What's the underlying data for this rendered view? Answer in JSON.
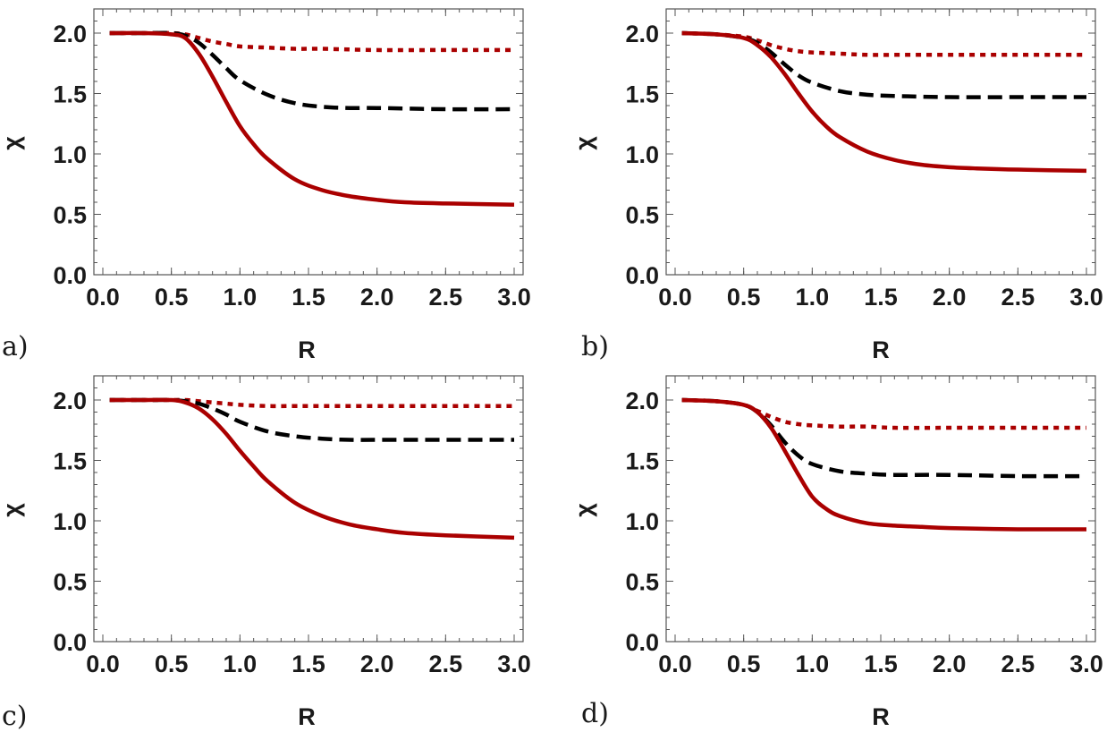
{
  "figure": {
    "colors": {
      "solid": "#aa0000",
      "dotted": "#aa0000",
      "dashed": "#000000",
      "text": "#1a1a1a"
    }
  },
  "chart_data": [
    {
      "type": "line",
      "panel_label": "a)",
      "xlabel": "R",
      "ylabel": "χ",
      "xlim": [
        0.0,
        3.0
      ],
      "ylim": [
        0.0,
        2.2
      ],
      "xticks": [
        "0.0",
        "0.5",
        "1.0",
        "1.5",
        "2.0",
        "2.5",
        "3.0"
      ],
      "yticks": [
        "0.0",
        "0.5",
        "1.0",
        "1.5",
        "2.0"
      ],
      "series": [
        {
          "name": "dotted",
          "style": "dotted",
          "x": [
            0.05,
            0.3,
            0.5,
            0.6,
            0.7,
            0.8,
            0.9,
            1.0,
            1.2,
            1.4,
            1.6,
            2.0,
            2.5,
            3.0
          ],
          "y": [
            2.0,
            2.0,
            2.0,
            1.99,
            1.96,
            1.93,
            1.91,
            1.89,
            1.88,
            1.87,
            1.87,
            1.86,
            1.86,
            1.86
          ]
        },
        {
          "name": "dashed",
          "style": "dashed",
          "x": [
            0.05,
            0.3,
            0.5,
            0.6,
            0.7,
            0.8,
            0.9,
            1.0,
            1.2,
            1.4,
            1.6,
            1.8,
            2.0,
            2.5,
            3.0
          ],
          "y": [
            2.0,
            2.0,
            2.0,
            1.98,
            1.92,
            1.82,
            1.71,
            1.61,
            1.49,
            1.42,
            1.39,
            1.38,
            1.38,
            1.37,
            1.37
          ]
        },
        {
          "name": "solid",
          "style": "solid",
          "x": [
            0.05,
            0.3,
            0.5,
            0.6,
            0.7,
            0.8,
            0.9,
            1.0,
            1.1,
            1.2,
            1.4,
            1.6,
            1.8,
            2.0,
            2.2,
            2.5,
            3.0
          ],
          "y": [
            2.0,
            2.0,
            1.99,
            1.96,
            1.83,
            1.64,
            1.43,
            1.23,
            1.08,
            0.96,
            0.79,
            0.7,
            0.65,
            0.62,
            0.6,
            0.59,
            0.58
          ]
        }
      ]
    },
    {
      "type": "line",
      "panel_label": "b)",
      "xlabel": "R",
      "ylabel": "χ",
      "xlim": [
        0.0,
        3.0
      ],
      "ylim": [
        0.0,
        2.2
      ],
      "xticks": [
        "0.0",
        "0.5",
        "1.0",
        "1.5",
        "2.0",
        "2.5",
        "3.0"
      ],
      "yticks": [
        "0.0",
        "0.5",
        "1.0",
        "1.5",
        "2.0"
      ],
      "series": [
        {
          "name": "dotted",
          "style": "dotted",
          "x": [
            0.05,
            0.3,
            0.5,
            0.6,
            0.7,
            0.8,
            0.9,
            1.0,
            1.2,
            1.4,
            1.6,
            2.0,
            2.5,
            3.0
          ],
          "y": [
            2.0,
            1.99,
            1.97,
            1.94,
            1.9,
            1.87,
            1.85,
            1.84,
            1.83,
            1.82,
            1.82,
            1.82,
            1.82,
            1.82
          ]
        },
        {
          "name": "dashed",
          "style": "dashed",
          "x": [
            0.05,
            0.3,
            0.5,
            0.6,
            0.7,
            0.8,
            0.9,
            1.0,
            1.2,
            1.4,
            1.6,
            2.0,
            2.5,
            3.0
          ],
          "y": [
            2.0,
            1.99,
            1.96,
            1.92,
            1.84,
            1.74,
            1.65,
            1.59,
            1.52,
            1.49,
            1.48,
            1.47,
            1.47,
            1.47
          ]
        },
        {
          "name": "solid",
          "style": "solid",
          "x": [
            0.05,
            0.3,
            0.5,
            0.6,
            0.7,
            0.8,
            0.9,
            1.0,
            1.1,
            1.2,
            1.4,
            1.6,
            1.8,
            2.0,
            2.2,
            2.5,
            3.0
          ],
          "y": [
            2.0,
            1.99,
            1.96,
            1.9,
            1.8,
            1.66,
            1.5,
            1.35,
            1.23,
            1.14,
            1.02,
            0.95,
            0.91,
            0.89,
            0.88,
            0.87,
            0.86
          ]
        }
      ]
    },
    {
      "type": "line",
      "panel_label": "c)",
      "xlabel": "R",
      "ylabel": "χ",
      "xlim": [
        0.0,
        3.0
      ],
      "ylim": [
        0.0,
        2.2
      ],
      "xticks": [
        "0.0",
        "0.5",
        "1.0",
        "1.5",
        "2.0",
        "2.5",
        "3.0"
      ],
      "yticks": [
        "0.0",
        "0.5",
        "1.0",
        "1.5",
        "2.0"
      ],
      "series": [
        {
          "name": "dotted",
          "style": "dotted",
          "x": [
            0.05,
            0.3,
            0.5,
            0.6,
            0.7,
            0.8,
            0.9,
            1.0,
            1.2,
            1.4,
            1.6,
            2.0,
            2.5,
            3.0
          ],
          "y": [
            2.0,
            2.0,
            2.0,
            2.0,
            1.99,
            1.98,
            1.97,
            1.96,
            1.95,
            1.95,
            1.95,
            1.95,
            1.95,
            1.95
          ]
        },
        {
          "name": "dashed",
          "style": "dashed",
          "x": [
            0.05,
            0.3,
            0.5,
            0.6,
            0.7,
            0.8,
            0.9,
            1.0,
            1.2,
            1.4,
            1.6,
            1.8,
            2.0,
            2.5,
            3.0
          ],
          "y": [
            2.0,
            2.0,
            2.0,
            1.99,
            1.97,
            1.93,
            1.88,
            1.82,
            1.74,
            1.7,
            1.68,
            1.67,
            1.67,
            1.67,
            1.67
          ]
        },
        {
          "name": "solid",
          "style": "solid",
          "x": [
            0.05,
            0.3,
            0.5,
            0.6,
            0.7,
            0.8,
            0.9,
            1.0,
            1.1,
            1.2,
            1.4,
            1.6,
            1.8,
            2.0,
            2.2,
            2.5,
            3.0
          ],
          "y": [
            2.0,
            2.0,
            2.0,
            1.98,
            1.93,
            1.84,
            1.72,
            1.58,
            1.45,
            1.33,
            1.15,
            1.04,
            0.97,
            0.93,
            0.9,
            0.88,
            0.86
          ]
        }
      ]
    },
    {
      "type": "line",
      "panel_label": "d)",
      "xlabel": "R",
      "ylabel": "χ",
      "xlim": [
        0.0,
        3.0
      ],
      "ylim": [
        0.0,
        2.2
      ],
      "xticks": [
        "0.0",
        "0.5",
        "1.0",
        "1.5",
        "2.0",
        "2.5",
        "3.0"
      ],
      "yticks": [
        "0.0",
        "0.5",
        "1.0",
        "1.5",
        "2.0"
      ],
      "series": [
        {
          "name": "dotted",
          "style": "dotted",
          "x": [
            0.05,
            0.3,
            0.5,
            0.6,
            0.7,
            0.8,
            0.9,
            1.0,
            1.2,
            1.4,
            1.6,
            2.0,
            2.5,
            3.0
          ],
          "y": [
            2.0,
            1.99,
            1.96,
            1.91,
            1.86,
            1.82,
            1.8,
            1.79,
            1.78,
            1.78,
            1.77,
            1.77,
            1.77,
            1.77
          ]
        },
        {
          "name": "dashed",
          "style": "dashed",
          "x": [
            0.05,
            0.3,
            0.5,
            0.6,
            0.7,
            0.8,
            0.9,
            1.0,
            1.2,
            1.4,
            1.6,
            2.0,
            2.5,
            3.0
          ],
          "y": [
            2.0,
            1.99,
            1.96,
            1.9,
            1.79,
            1.65,
            1.54,
            1.47,
            1.41,
            1.39,
            1.38,
            1.38,
            1.37,
            1.37
          ]
        },
        {
          "name": "solid",
          "style": "solid",
          "x": [
            0.05,
            0.3,
            0.5,
            0.6,
            0.7,
            0.8,
            0.9,
            1.0,
            1.1,
            1.2,
            1.4,
            1.6,
            1.8,
            2.0,
            2.5,
            3.0
          ],
          "y": [
            2.0,
            1.99,
            1.96,
            1.9,
            1.77,
            1.58,
            1.38,
            1.2,
            1.1,
            1.04,
            0.98,
            0.96,
            0.95,
            0.94,
            0.93,
            0.93
          ]
        }
      ]
    }
  ]
}
